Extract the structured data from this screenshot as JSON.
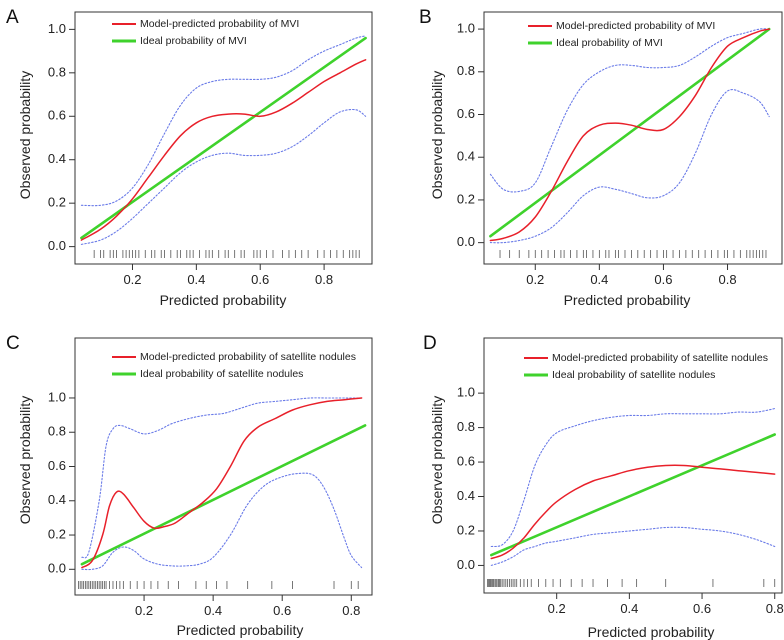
{
  "chart_data": [
    {
      "panel": "A",
      "type": "line",
      "xlabel": "Predicted probability",
      "ylabel": "Observed probability",
      "xlim": [
        0.02,
        0.95
      ],
      "ylim": [
        -0.08,
        1.08
      ],
      "xticks": [
        0.2,
        0.4,
        0.6,
        0.8
      ],
      "xtick_labels": [
        "0.2",
        "0.4",
        "0.6",
        "0.8"
      ],
      "yticks": [
        0.0,
        0.2,
        0.4,
        0.6,
        0.8,
        1.0
      ],
      "ytick_labels": [
        "0.0",
        "0.2",
        "0.4",
        "0.6",
        "0.8",
        "1.0"
      ],
      "legend_position": "top-left",
      "legend": [
        {
          "label": "Model-predicted probability of MVI",
          "color": "#e8202a"
        },
        {
          "label": "Ideal probability of MVI",
          "color": "#3fd22c"
        }
      ],
      "series": [
        {
          "name": "Model-predicted probability of MVI",
          "color": "#e8202a",
          "style": "solid",
          "x": [
            0.04,
            0.1,
            0.15,
            0.2,
            0.25,
            0.3,
            0.35,
            0.4,
            0.45,
            0.5,
            0.55,
            0.6,
            0.65,
            0.7,
            0.75,
            0.8,
            0.85,
            0.9,
            0.93
          ],
          "y": [
            0.03,
            0.08,
            0.14,
            0.22,
            0.32,
            0.42,
            0.51,
            0.57,
            0.6,
            0.61,
            0.61,
            0.6,
            0.62,
            0.66,
            0.71,
            0.76,
            0.8,
            0.84,
            0.86
          ]
        },
        {
          "name": "Ideal probability of MVI",
          "color": "#3fd22c",
          "style": "solid",
          "x": [
            0.04,
            0.93
          ],
          "y": [
            0.04,
            0.96
          ]
        },
        {
          "name": "Upper confidence bound",
          "color": "#6a7be8",
          "style": "dotted",
          "x": [
            0.04,
            0.1,
            0.15,
            0.2,
            0.25,
            0.3,
            0.35,
            0.4,
            0.45,
            0.5,
            0.55,
            0.6,
            0.65,
            0.7,
            0.75,
            0.8,
            0.85,
            0.9,
            0.93
          ],
          "y": [
            0.19,
            0.19,
            0.21,
            0.27,
            0.38,
            0.52,
            0.65,
            0.73,
            0.76,
            0.77,
            0.77,
            0.77,
            0.78,
            0.81,
            0.86,
            0.9,
            0.93,
            0.96,
            0.97
          ]
        },
        {
          "name": "Lower confidence bound",
          "color": "#6a7be8",
          "style": "dotted",
          "x": [
            0.04,
            0.1,
            0.15,
            0.2,
            0.25,
            0.3,
            0.35,
            0.4,
            0.45,
            0.5,
            0.55,
            0.6,
            0.65,
            0.7,
            0.75,
            0.8,
            0.85,
            0.9,
            0.93
          ],
          "y": [
            0.01,
            0.03,
            0.07,
            0.13,
            0.2,
            0.27,
            0.34,
            0.39,
            0.42,
            0.43,
            0.42,
            0.42,
            0.43,
            0.46,
            0.51,
            0.57,
            0.62,
            0.63,
            0.6
          ]
        }
      ],
      "rug": [
        0.08,
        0.1,
        0.11,
        0.13,
        0.14,
        0.15,
        0.17,
        0.18,
        0.19,
        0.2,
        0.21,
        0.22,
        0.24,
        0.26,
        0.27,
        0.29,
        0.3,
        0.32,
        0.34,
        0.35,
        0.37,
        0.38,
        0.39,
        0.41,
        0.43,
        0.44,
        0.45,
        0.47,
        0.49,
        0.5,
        0.52,
        0.54,
        0.55,
        0.58,
        0.59,
        0.6,
        0.62,
        0.64,
        0.67,
        0.69,
        0.71,
        0.73,
        0.75,
        0.78,
        0.8,
        0.82,
        0.84,
        0.86,
        0.88,
        0.89,
        0.9,
        0.91
      ]
    },
    {
      "panel": "B",
      "type": "line",
      "xlabel": "Predicted probability",
      "ylabel": "Observed probability",
      "xlim": [
        0.04,
        0.97
      ],
      "ylim": [
        -0.1,
        1.08
      ],
      "xticks": [
        0.2,
        0.4,
        0.6,
        0.8
      ],
      "xtick_labels": [
        "0.2",
        "0.4",
        "0.6",
        "0.8"
      ],
      "yticks": [
        0.0,
        0.2,
        0.4,
        0.6,
        0.8,
        1.0
      ],
      "ytick_labels": [
        "0.0",
        "0.2",
        "0.4",
        "0.6",
        "0.8",
        "1.0"
      ],
      "legend_position": "top-left",
      "legend": [
        {
          "label": "Model-predicted probability of MVI",
          "color": "#e8202a"
        },
        {
          "label": "Ideal probability of MVI",
          "color": "#3fd22c"
        }
      ],
      "series": [
        {
          "name": "Model-predicted probability of MVI",
          "color": "#e8202a",
          "style": "solid",
          "x": [
            0.06,
            0.1,
            0.15,
            0.2,
            0.25,
            0.3,
            0.35,
            0.4,
            0.45,
            0.5,
            0.55,
            0.6,
            0.65,
            0.7,
            0.75,
            0.8,
            0.85,
            0.9,
            0.93
          ],
          "y": [
            0.01,
            0.02,
            0.05,
            0.12,
            0.24,
            0.38,
            0.5,
            0.55,
            0.56,
            0.55,
            0.53,
            0.53,
            0.59,
            0.69,
            0.82,
            0.92,
            0.96,
            0.99,
            1.0
          ]
        },
        {
          "name": "Ideal probability of MVI",
          "color": "#3fd22c",
          "style": "solid",
          "x": [
            0.06,
            0.93
          ],
          "y": [
            0.03,
            1.0
          ]
        },
        {
          "name": "Upper confidence bound",
          "color": "#6a7be8",
          "style": "dotted",
          "x": [
            0.06,
            0.1,
            0.15,
            0.2,
            0.25,
            0.3,
            0.35,
            0.4,
            0.45,
            0.5,
            0.55,
            0.6,
            0.65,
            0.7,
            0.75,
            0.8,
            0.85,
            0.9,
            0.93
          ],
          "y": [
            0.32,
            0.25,
            0.24,
            0.28,
            0.45,
            0.62,
            0.74,
            0.8,
            0.83,
            0.83,
            0.82,
            0.82,
            0.83,
            0.87,
            0.92,
            0.96,
            0.98,
            1.0,
            1.0
          ]
        },
        {
          "name": "Lower confidence bound",
          "color": "#6a7be8",
          "style": "dotted",
          "x": [
            0.06,
            0.1,
            0.15,
            0.2,
            0.25,
            0.3,
            0.35,
            0.4,
            0.45,
            0.5,
            0.55,
            0.6,
            0.65,
            0.7,
            0.75,
            0.8,
            0.85,
            0.9,
            0.93
          ],
          "y": [
            0.0,
            0.0,
            0.01,
            0.03,
            0.07,
            0.14,
            0.22,
            0.26,
            0.25,
            0.23,
            0.21,
            0.22,
            0.28,
            0.42,
            0.6,
            0.71,
            0.7,
            0.66,
            0.59
          ]
        }
      ],
      "rug": [
        0.09,
        0.12,
        0.15,
        0.18,
        0.2,
        0.22,
        0.24,
        0.26,
        0.28,
        0.29,
        0.31,
        0.33,
        0.35,
        0.36,
        0.38,
        0.4,
        0.42,
        0.43,
        0.45,
        0.46,
        0.48,
        0.5,
        0.52,
        0.54,
        0.56,
        0.58,
        0.6,
        0.61,
        0.63,
        0.65,
        0.67,
        0.69,
        0.71,
        0.73,
        0.75,
        0.77,
        0.79,
        0.8,
        0.82,
        0.84,
        0.86,
        0.87,
        0.88,
        0.89,
        0.9,
        0.91,
        0.92
      ]
    },
    {
      "panel": "C",
      "type": "line",
      "xlabel": "Predicted probability",
      "ylabel": "Observed probability",
      "xlim": [
        0.0,
        0.86
      ],
      "ylim": [
        -0.15,
        1.35
      ],
      "xticks": [
        0.2,
        0.4,
        0.6,
        0.8
      ],
      "xtick_labels": [
        "0.2",
        "0.4",
        "0.6",
        "0.8"
      ],
      "yticks": [
        0.0,
        0.2,
        0.4,
        0.6,
        0.8,
        1.0
      ],
      "ytick_labels": [
        "0.0",
        "0.2",
        "0.4",
        "0.6",
        "0.8",
        "1.0"
      ],
      "legend_position": "top-right",
      "legend": [
        {
          "label": "Model-predicted probability of satellite nodules",
          "color": "#e8202a"
        },
        {
          "label": "Ideal probability of satellite nodules",
          "color": "#3fd22c"
        }
      ],
      "series": [
        {
          "name": "Model-predicted probability of satellite nodules",
          "color": "#e8202a",
          "style": "solid",
          "x": [
            0.02,
            0.05,
            0.08,
            0.1,
            0.12,
            0.14,
            0.17,
            0.2,
            0.23,
            0.26,
            0.29,
            0.33,
            0.37,
            0.41,
            0.45,
            0.49,
            0.53,
            0.58,
            0.63,
            0.68,
            0.73,
            0.78,
            0.83
          ],
          "y": [
            0.01,
            0.05,
            0.2,
            0.37,
            0.45,
            0.44,
            0.36,
            0.28,
            0.24,
            0.25,
            0.27,
            0.33,
            0.39,
            0.47,
            0.6,
            0.75,
            0.83,
            0.88,
            0.93,
            0.96,
            0.98,
            0.99,
            1.0
          ]
        },
        {
          "name": "Ideal probability of satellite nodules",
          "color": "#3fd22c",
          "style": "solid",
          "x": [
            0.02,
            0.84
          ],
          "y": [
            0.03,
            0.84
          ]
        },
        {
          "name": "Upper confidence bound",
          "color": "#6a7be8",
          "style": "dotted",
          "x": [
            0.02,
            0.04,
            0.07,
            0.09,
            0.11,
            0.13,
            0.16,
            0.2,
            0.24,
            0.28,
            0.33,
            0.38,
            0.43,
            0.48,
            0.53,
            0.58,
            0.63,
            0.68,
            0.73,
            0.78,
            0.83
          ],
          "y": [
            0.07,
            0.1,
            0.4,
            0.72,
            0.82,
            0.84,
            0.82,
            0.79,
            0.81,
            0.85,
            0.88,
            0.9,
            0.91,
            0.94,
            0.97,
            0.98,
            0.99,
            1.0,
            1.0,
            1.0,
            1.0
          ]
        },
        {
          "name": "Lower confidence bound",
          "color": "#6a7be8",
          "style": "dotted",
          "x": [
            0.02,
            0.05,
            0.08,
            0.11,
            0.14,
            0.17,
            0.2,
            0.24,
            0.28,
            0.32,
            0.36,
            0.4,
            0.45,
            0.5,
            0.55,
            0.6,
            0.65,
            0.69,
            0.72,
            0.75,
            0.78,
            0.8,
            0.83
          ],
          "y": [
            0.0,
            0.0,
            0.02,
            0.1,
            0.13,
            0.11,
            0.06,
            0.03,
            0.02,
            0.02,
            0.03,
            0.07,
            0.2,
            0.38,
            0.49,
            0.54,
            0.56,
            0.55,
            0.48,
            0.35,
            0.18,
            0.08,
            0.01
          ]
        }
      ],
      "rug": [
        0.01,
        0.015,
        0.02,
        0.025,
        0.03,
        0.035,
        0.04,
        0.045,
        0.05,
        0.055,
        0.06,
        0.065,
        0.07,
        0.075,
        0.08,
        0.085,
        0.09,
        0.1,
        0.11,
        0.12,
        0.13,
        0.14,
        0.16,
        0.18,
        0.2,
        0.22,
        0.24,
        0.27,
        0.3,
        0.35,
        0.38,
        0.41,
        0.44,
        0.5,
        0.57,
        0.63,
        0.75,
        0.8,
        0.82
      ]
    },
    {
      "panel": "D",
      "type": "line",
      "xlabel": "Predicted probability",
      "ylabel": "Observed probability",
      "xlim": [
        0.0,
        0.82
      ],
      "ylim": [
        -0.16,
        1.32
      ],
      "xticks": [
        0.2,
        0.4,
        0.6,
        0.8
      ],
      "xtick_labels": [
        "0.2",
        "0.4",
        "0.6",
        "0.8"
      ],
      "yticks": [
        0.0,
        0.2,
        0.4,
        0.6,
        0.8,
        1.0
      ],
      "ytick_labels": [
        "0.0",
        "0.2",
        "0.4",
        "0.6",
        "0.8",
        "1.0"
      ],
      "legend_position": "top-right",
      "legend": [
        {
          "label": "Model-predicted probability of satellite nodules",
          "color": "#e8202a"
        },
        {
          "label": "Ideal probability of satellite nodules",
          "color": "#3fd22c"
        }
      ],
      "series": [
        {
          "name": "Model-predicted probability of satellite nodules",
          "color": "#e8202a",
          "style": "solid",
          "x": [
            0.02,
            0.05,
            0.08,
            0.11,
            0.14,
            0.17,
            0.2,
            0.25,
            0.3,
            0.35,
            0.4,
            0.45,
            0.5,
            0.55,
            0.6,
            0.65,
            0.7,
            0.75,
            0.8
          ],
          "y": [
            0.04,
            0.06,
            0.1,
            0.16,
            0.24,
            0.31,
            0.37,
            0.44,
            0.49,
            0.52,
            0.55,
            0.57,
            0.58,
            0.58,
            0.57,
            0.56,
            0.55,
            0.54,
            0.53
          ]
        },
        {
          "name": "Ideal probability of satellite nodules",
          "color": "#3fd22c",
          "style": "solid",
          "x": [
            0.02,
            0.8
          ],
          "y": [
            0.06,
            0.76
          ]
        },
        {
          "name": "Upper confidence bound",
          "color": "#6a7be8",
          "style": "dotted",
          "x": [
            0.02,
            0.05,
            0.08,
            0.11,
            0.14,
            0.17,
            0.2,
            0.25,
            0.3,
            0.35,
            0.4,
            0.45,
            0.5,
            0.55,
            0.6,
            0.65,
            0.7,
            0.75,
            0.8
          ],
          "y": [
            0.11,
            0.12,
            0.2,
            0.38,
            0.58,
            0.7,
            0.77,
            0.81,
            0.84,
            0.86,
            0.87,
            0.87,
            0.88,
            0.88,
            0.88,
            0.88,
            0.89,
            0.89,
            0.91
          ]
        },
        {
          "name": "Lower confidence bound",
          "color": "#6a7be8",
          "style": "dotted",
          "x": [
            0.02,
            0.05,
            0.08,
            0.11,
            0.14,
            0.17,
            0.2,
            0.25,
            0.3,
            0.35,
            0.4,
            0.45,
            0.5,
            0.55,
            0.6,
            0.65,
            0.7,
            0.75,
            0.8
          ],
          "y": [
            0.0,
            0.02,
            0.05,
            0.09,
            0.11,
            0.13,
            0.14,
            0.16,
            0.18,
            0.19,
            0.2,
            0.21,
            0.22,
            0.22,
            0.21,
            0.2,
            0.18,
            0.15,
            0.11
          ]
        }
      ],
      "rug": [
        0.01,
        0.012,
        0.015,
        0.018,
        0.02,
        0.023,
        0.026,
        0.03,
        0.033,
        0.036,
        0.04,
        0.043,
        0.046,
        0.05,
        0.055,
        0.06,
        0.065,
        0.07,
        0.075,
        0.08,
        0.085,
        0.09,
        0.1,
        0.11,
        0.12,
        0.13,
        0.15,
        0.17,
        0.19,
        0.21,
        0.24,
        0.27,
        0.3,
        0.34,
        0.38,
        0.42,
        0.5,
        0.63,
        0.77,
        0.8
      ]
    }
  ]
}
